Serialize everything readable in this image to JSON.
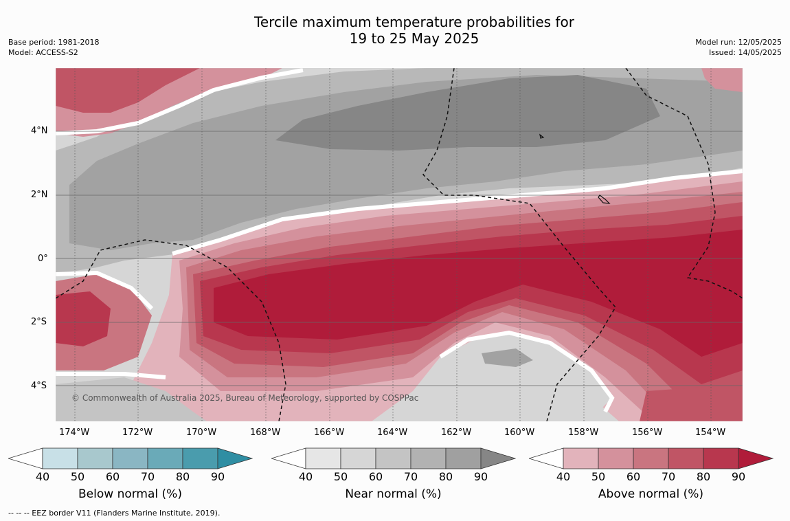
{
  "title": {
    "line1": "Tercile maximum temperature probabilities for",
    "line2": "19 to 25 May 2025"
  },
  "meta_left": {
    "base_period": "Base period: 1981-2018",
    "model": "Model: ACCESS-S2"
  },
  "meta_right": {
    "model_run": "Model run: 12/05/2025",
    "issued": "Issued: 14/05/2025"
  },
  "x_ticks": [
    "174°W",
    "172°W",
    "170°W",
    "168°W",
    "166°W",
    "164°W",
    "162°W",
    "160°W",
    "158°W",
    "156°W",
    "154°W"
  ],
  "y_ticks": [
    "4°N",
    "2°N",
    "0°",
    "2°S",
    "4°S"
  ],
  "copyright": "© Commonwealth of Australia 2025, Bureau of Meteorology, supported by COSPPac",
  "colorbars": [
    {
      "label": "Below normal (%)",
      "ticks": [
        "40",
        "50",
        "60",
        "70",
        "80",
        "90"
      ],
      "colors": [
        "#ffffff",
        "#c8e0e7",
        "#a8c8cd",
        "#8ab6c3",
        "#6aaab8",
        "#4a9cad",
        "#2f8ea3"
      ]
    },
    {
      "label": "Near normal (%)",
      "ticks": [
        "40",
        "50",
        "60",
        "70",
        "80",
        "90"
      ],
      "colors": [
        "#ffffff",
        "#e6e6e6",
        "#d6d6d6",
        "#c4c4c4",
        "#b2b2b2",
        "#a0a0a0",
        "#868686"
      ]
    },
    {
      "label": "Above normal (%)",
      "ticks": [
        "40",
        "50",
        "60",
        "70",
        "80",
        "90"
      ],
      "colors": [
        "#ffffff",
        "#e2b3bb",
        "#d4919c",
        "#c97580",
        "#c05565",
        "#b8374e",
        "#b01c3a"
      ]
    }
  ],
  "footer": "--  --  -- EEZ border V11 (Flanders Marine Institute, 2019)."
}
